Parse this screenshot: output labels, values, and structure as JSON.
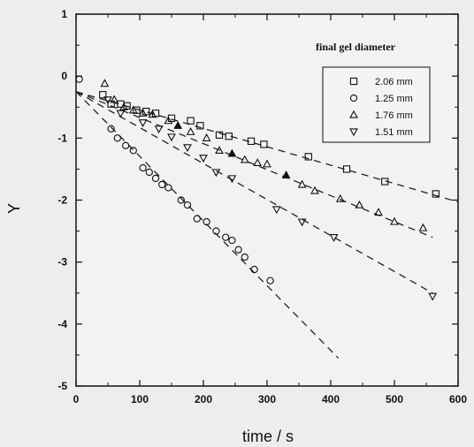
{
  "chart_data": {
    "type": "scatter",
    "xlabel": "time / s",
    "ylabel": "Y",
    "xlim": [
      0,
      600
    ],
    "ylim": [
      -5,
      1
    ],
    "xticks": [
      0,
      100,
      200,
      300,
      400,
      500,
      600
    ],
    "yticks": [
      1,
      0,
      -1,
      -2,
      -3,
      -4,
      -5
    ],
    "grid": false,
    "legend": {
      "title": "final gel diameter",
      "position": "top-right"
    },
    "series": [
      {
        "name": "2.06 mm",
        "marker": "square",
        "filled": false,
        "points": [
          [
            42,
            -0.3
          ],
          [
            55,
            -0.45
          ],
          [
            70,
            -0.45
          ],
          [
            80,
            -0.48
          ],
          [
            95,
            -0.55
          ],
          [
            110,
            -0.57
          ],
          [
            125,
            -0.6
          ],
          [
            150,
            -0.68
          ],
          [
            180,
            -0.72
          ],
          [
            195,
            -0.8
          ],
          [
            225,
            -0.95
          ],
          [
            240,
            -0.97
          ],
          [
            275,
            -1.05
          ],
          [
            295,
            -1.1
          ],
          [
            365,
            -1.3
          ],
          [
            425,
            -1.5
          ],
          [
            485,
            -1.7
          ],
          [
            565,
            -1.9
          ]
        ],
        "fit": [
          [
            0,
            -0.25
          ],
          [
            600,
            -2.03
          ]
        ]
      },
      {
        "name": "1.25 mm",
        "marker": "circle",
        "filled": false,
        "points": [
          [
            5,
            -0.05
          ],
          [
            55,
            -0.85
          ],
          [
            65,
            -1.0
          ],
          [
            78,
            -1.12
          ],
          [
            90,
            -1.2
          ],
          [
            105,
            -1.48
          ],
          [
            115,
            -1.55
          ],
          [
            125,
            -1.65
          ],
          [
            135,
            -1.75
          ],
          [
            145,
            -1.8
          ],
          [
            165,
            -2.0
          ],
          [
            175,
            -2.08
          ],
          [
            190,
            -2.3
          ],
          [
            205,
            -2.35
          ],
          [
            220,
            -2.5
          ],
          [
            235,
            -2.6
          ],
          [
            245,
            -2.65
          ],
          [
            255,
            -2.8
          ],
          [
            265,
            -2.92
          ],
          [
            280,
            -3.12
          ],
          [
            305,
            -3.3
          ]
        ],
        "fit": [
          [
            0,
            -0.25
          ],
          [
            412,
            -4.55
          ]
        ]
      },
      {
        "name": "1.76 mm",
        "marker": "triangle-up",
        "filled": false,
        "filled_points": [
          7,
          11,
          15
        ],
        "points": [
          [
            45,
            -0.12
          ],
          [
            60,
            -0.38
          ],
          [
            75,
            -0.5
          ],
          [
            90,
            -0.55
          ],
          [
            105,
            -0.6
          ],
          [
            120,
            -0.62
          ],
          [
            145,
            -0.72
          ],
          [
            160,
            -0.8
          ],
          [
            180,
            -0.9
          ],
          [
            205,
            -1.0
          ],
          [
            225,
            -1.2
          ],
          [
            245,
            -1.25
          ],
          [
            265,
            -1.35
          ],
          [
            285,
            -1.4
          ],
          [
            300,
            -1.42
          ],
          [
            330,
            -1.6
          ],
          [
            355,
            -1.75
          ],
          [
            375,
            -1.85
          ],
          [
            415,
            -1.98
          ],
          [
            445,
            -2.08
          ],
          [
            475,
            -2.2
          ],
          [
            500,
            -2.35
          ],
          [
            545,
            -2.45
          ]
        ],
        "fit": [
          [
            0,
            -0.25
          ],
          [
            560,
            -2.6
          ]
        ]
      },
      {
        "name": "1.51 mm",
        "marker": "triangle-down",
        "filled": false,
        "points": [
          [
            50,
            -0.38
          ],
          [
            70,
            -0.6
          ],
          [
            105,
            -0.75
          ],
          [
            130,
            -0.85
          ],
          [
            150,
            -0.98
          ],
          [
            175,
            -1.15
          ],
          [
            200,
            -1.32
          ],
          [
            220,
            -1.55
          ],
          [
            245,
            -1.65
          ],
          [
            315,
            -2.15
          ],
          [
            355,
            -2.35
          ],
          [
            405,
            -2.6
          ],
          [
            560,
            -3.55
          ]
        ],
        "fit": [
          [
            0,
            -0.25
          ],
          [
            560,
            -3.5
          ]
        ]
      }
    ]
  },
  "axes": {
    "y_label": "Y",
    "x_label": "time / s"
  },
  "legend": {
    "title": "final gel diameter",
    "items": [
      "2.06 mm",
      "1.25 mm",
      "1.76 mm",
      "1.51 mm"
    ]
  },
  "ticks": {
    "x": [
      "0",
      "100",
      "200",
      "300",
      "400",
      "500",
      "600"
    ],
    "y": [
      "1",
      "0",
      "-1",
      "-2",
      "-3",
      "-4",
      "-5"
    ]
  }
}
